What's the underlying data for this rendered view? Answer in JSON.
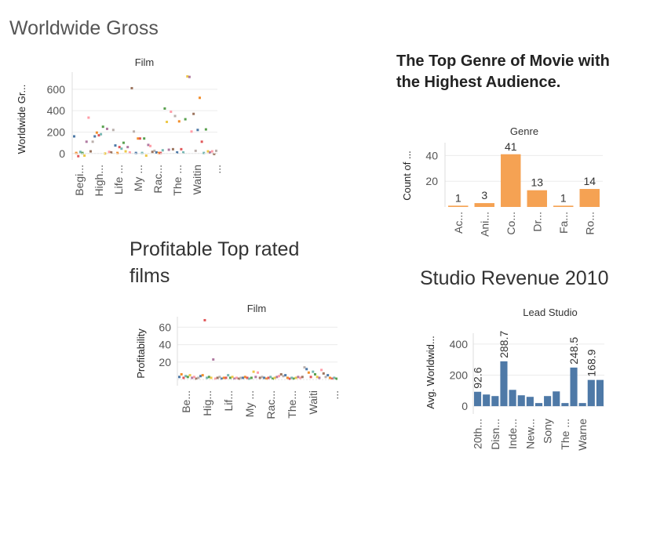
{
  "titles": {
    "worldwide": "Worldwide Gross",
    "genre": "The Top Genre of Movie with the Highest Audience.",
    "profit": "Profitable Top rated films",
    "studio": "Studio Revenue 2010"
  },
  "chart_data": [
    {
      "id": "worldwide",
      "type": "scatter",
      "header": "Film",
      "ylabel": "Worldwide Gr...",
      "yticks": [
        0,
        200,
        400,
        600
      ],
      "ylim": [
        -60,
        760
      ],
      "categories": [
        "Begi...",
        "High...",
        "Life ...",
        "My ...",
        "Rac...",
        "The ...",
        "Waitin",
        "..."
      ],
      "colors": [
        "#4e79a7",
        "#f28e2b",
        "#e15759",
        "#76b7b2",
        "#59a14f",
        "#edc948",
        "#b07aa1",
        "#ff9da7",
        "#9c755f",
        "#bab0ac"
      ],
      "values": [
        160,
        5,
        -25,
        15,
        5,
        -20,
        110,
        335,
        20,
        110,
        160,
        195,
        170,
        180,
        250,
        0,
        230,
        15,
        10,
        220,
        75,
        5,
        60,
        45,
        100,
        20,
        60,
        10,
        610,
        205,
        5,
        140,
        140,
        5,
        140,
        -20,
        80,
        70,
        15,
        25,
        10,
        5,
        5,
        30,
        420,
        295,
        35,
        390,
        40,
        350,
        10,
        300,
        40,
        10,
        320,
        720,
        715,
        205,
        370,
        25,
        220,
        520,
        110,
        5,
        225,
        20,
        10,
        20,
        -5,
        25
      ]
    },
    {
      "id": "genre",
      "type": "bar",
      "header": "Genre",
      "ylabel": "Count of ...",
      "yticks": [
        20,
        40
      ],
      "ylim": [
        0,
        50
      ],
      "color": "#f5a253",
      "categories": [
        "Ac...",
        "Ani...",
        "Co...",
        "Dr...",
        "Fa...",
        "Ro..."
      ],
      "values": [
        1,
        3,
        41,
        13,
        1,
        14
      ],
      "labels": [
        "1",
        "3",
        "41",
        "13",
        "1",
        "14"
      ]
    },
    {
      "id": "profit",
      "type": "scatter",
      "header": "Film",
      "ylabel": "Profitability",
      "yticks": [
        20,
        40,
        60
      ],
      "ylim": [
        -7,
        72
      ],
      "categories": [
        "Be...",
        "Hig...",
        "Lif...",
        "My ...",
        "Rac...",
        "The...",
        "Waiti",
        "..."
      ],
      "colors": [
        "#4e79a7",
        "#f28e2b",
        "#e15759",
        "#76b7b2",
        "#59a14f",
        "#edc948",
        "#b07aa1",
        "#ff9da7",
        "#9c755f",
        "#bab0ac"
      ],
      "values": [
        3,
        6,
        2,
        4,
        3,
        5,
        2,
        3,
        1,
        2,
        4,
        5,
        68,
        2,
        3,
        2,
        23,
        1,
        2,
        3,
        1,
        2,
        2,
        5,
        2,
        3,
        1,
        2,
        1,
        2,
        2,
        3,
        2,
        1,
        2,
        9,
        3,
        8,
        2,
        3,
        2,
        1,
        2,
        3,
        1,
        2,
        3,
        4,
        6,
        4,
        5,
        2,
        1,
        2,
        1,
        2,
        3,
        2,
        3,
        14,
        12,
        8,
        3,
        9,
        6,
        3,
        2,
        11,
        7,
        3,
        5,
        2,
        1,
        2,
        1
      ]
    },
    {
      "id": "studio",
      "type": "bar",
      "header": "Lead Studio",
      "ylabel": "Avg. Worldwid...",
      "yticks": [
        0,
        200,
        400
      ],
      "ylim": [
        -50,
        470
      ],
      "color": "#4e79a7",
      "categories": [
        "20th...",
        "Disn...",
        "Inde...",
        "New...",
        "Sony",
        "The ...",
        "Warne"
      ],
      "values": [
        92.6,
        75,
        65,
        288.7,
        105,
        70,
        60,
        20,
        65,
        95,
        20,
        248.5,
        20,
        168.9,
        168.9
      ],
      "labels": [
        "92.6",
        "",
        "",
        "288.7",
        "",
        "",
        "",
        "",
        "",
        "",
        "",
        "248.5",
        "",
        "168.9",
        ""
      ]
    }
  ]
}
